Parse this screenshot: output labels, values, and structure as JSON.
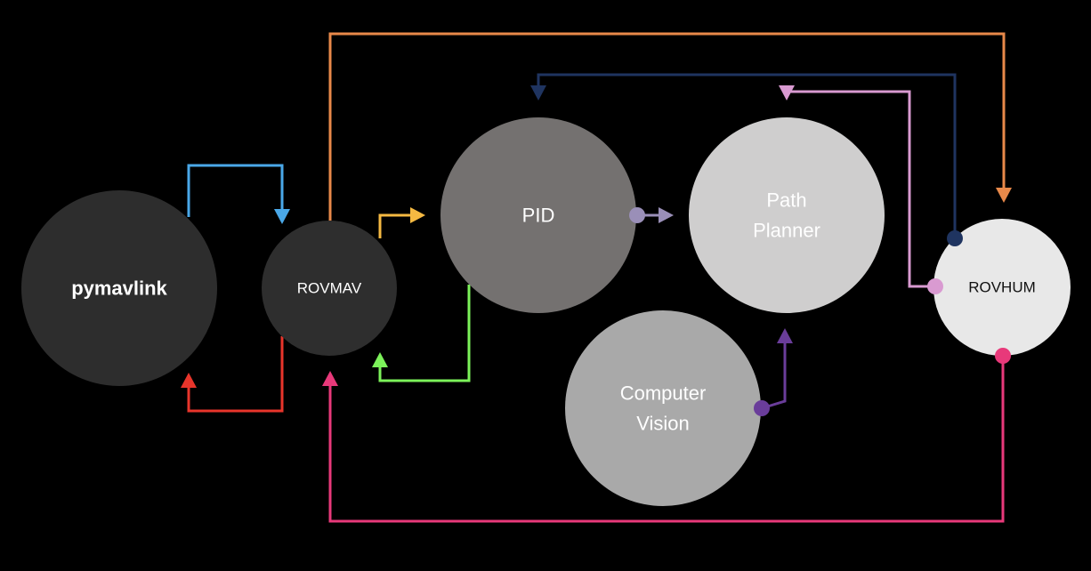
{
  "nodes": [
    {
      "id": "pymavlink",
      "lines": [
        "pymavlink"
      ],
      "fill": "#2d2d2d",
      "text_color": "#ffffff"
    },
    {
      "id": "rovmav",
      "lines": [
        "ROVMAV"
      ],
      "fill": "#2e2e2e",
      "text_color": "#ffffff"
    },
    {
      "id": "pid",
      "lines": [
        "PID"
      ],
      "fill": "#747170",
      "text_color": "#ffffff"
    },
    {
      "id": "path-planner",
      "lines": [
        "Path",
        "Planner"
      ],
      "fill": "#cfcece",
      "text_color": "#ffffff"
    },
    {
      "id": "computer-vision",
      "lines": [
        "Computer",
        "Vision"
      ],
      "fill": "#a9a9a9",
      "text_color": "#ffffff"
    },
    {
      "id": "rovhum",
      "lines": [
        "ROVHUM"
      ],
      "fill": "#e8e8e8",
      "text_color": "#111111"
    }
  ],
  "edges": [
    {
      "id": "pymavlink-to-rovmav",
      "from": "pymavlink",
      "to": "rovmav",
      "color": "#4aa8e8"
    },
    {
      "id": "rovmav-to-pymavlink",
      "from": "rovmav",
      "to": "pymavlink",
      "color": "#e8352b"
    },
    {
      "id": "rovmav-to-pid",
      "from": "rovmav",
      "to": "pid",
      "color": "#f5b942"
    },
    {
      "id": "pid-to-rovmav",
      "from": "pid",
      "to": "rovmav",
      "color": "#7cf25a"
    },
    {
      "id": "pid-to-path-planner",
      "from": "pid",
      "to": "path-planner",
      "color": "#9a8fb8"
    },
    {
      "id": "computer-vision-to-path-planner",
      "from": "computer-vision",
      "to": "path-planner",
      "color": "#6a3d9a"
    },
    {
      "id": "rovhum-to-pid",
      "from": "rovhum",
      "to": "pid",
      "color": "#1f3460"
    },
    {
      "id": "rovhum-to-path-planner",
      "from": "rovhum",
      "to": "path-planner",
      "color": "#d99ad1"
    },
    {
      "id": "rovmav-to-rovhum",
      "from": "rovmav",
      "to": "rovhum",
      "color": "#e8894a"
    },
    {
      "id": "rovhum-to-rovmav",
      "from": "rovhum",
      "to": "rovmav",
      "color": "#e8397a"
    }
  ]
}
